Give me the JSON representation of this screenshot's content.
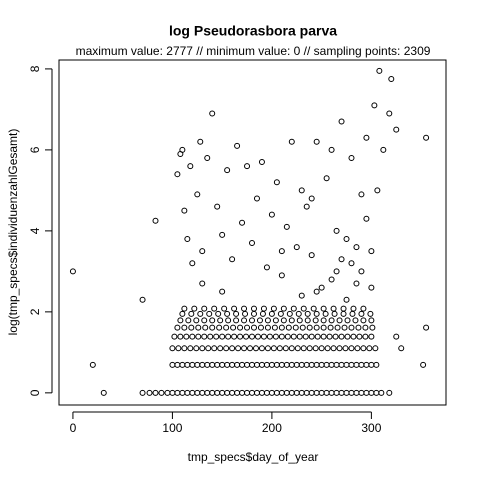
{
  "chart_data": {
    "type": "scatter",
    "title": "log Pseudorasbora parva",
    "subtitle": "maximum value: 2777  //  minimum value: 0  // sampling points: 2309",
    "x_label": "tmp_specs$day_of_year",
    "y_label": "log(tmp_specs$individuenzahlGesamt)",
    "xlim": [
      -14,
      375
    ],
    "ylim": [
      -0.3,
      8.22
    ],
    "xticks": [
      0,
      100,
      200,
      300
    ],
    "yticks": [
      0,
      2,
      4,
      6,
      8
    ],
    "color": "#000000",
    "x": [
      70,
      77,
      83,
      89,
      95,
      100,
      105,
      110,
      115,
      120,
      125,
      130,
      135,
      140,
      145,
      150,
      155,
      160,
      165,
      170,
      175,
      180,
      185,
      190,
      195,
      200,
      205,
      210,
      215,
      220,
      225,
      230,
      235,
      240,
      245,
      250,
      255,
      260,
      265,
      270,
      275,
      280,
      285,
      290,
      295,
      300,
      305,
      31,
      310,
      318,
      20,
      100,
      105,
      110,
      115,
      120,
      125,
      130,
      135,
      140,
      145,
      150,
      155,
      160,
      165,
      170,
      175,
      180,
      185,
      190,
      195,
      200,
      205,
      210,
      215,
      220,
      225,
      230,
      235,
      240,
      245,
      250,
      255,
      260,
      265,
      270,
      275,
      280,
      285,
      290,
      295,
      300,
      305,
      352,
      100,
      106,
      112,
      118,
      124,
      130,
      136,
      142,
      148,
      154,
      160,
      166,
      172,
      178,
      184,
      190,
      196,
      202,
      208,
      214,
      220,
      226,
      232,
      238,
      244,
      250,
      256,
      262,
      268,
      274,
      280,
      286,
      292,
      298,
      304,
      330,
      102,
      108,
      114,
      120,
      126,
      132,
      138,
      144,
      150,
      156,
      162,
      168,
      174,
      180,
      186,
      192,
      198,
      204,
      210,
      216,
      222,
      228,
      234,
      240,
      246,
      252,
      258,
      264,
      270,
      276,
      282,
      288,
      294,
      300,
      325,
      105,
      112,
      119,
      126,
      133,
      140,
      147,
      154,
      161,
      168,
      175,
      182,
      189,
      196,
      203,
      210,
      217,
      224,
      231,
      238,
      245,
      252,
      259,
      266,
      273,
      280,
      287,
      294,
      301,
      355,
      108,
      116,
      124,
      132,
      140,
      148,
      156,
      164,
      172,
      180,
      188,
      196,
      204,
      212,
      220,
      228,
      236,
      244,
      252,
      260,
      268,
      276,
      284,
      292,
      300,
      110,
      119,
      128,
      137,
      146,
      155,
      164,
      173,
      182,
      191,
      200,
      209,
      218,
      227,
      236,
      245,
      254,
      263,
      272,
      281,
      290,
      299,
      112,
      122,
      132,
      142,
      152,
      162,
      172,
      182,
      192,
      202,
      212,
      222,
      232,
      242,
      252,
      262,
      272,
      282,
      292,
      0,
      83,
      70,
      105,
      108,
      110,
      112,
      115,
      118,
      120,
      125,
      128,
      130,
      135,
      140,
      145,
      150,
      155,
      160,
      165,
      170,
      175,
      180,
      185,
      190,
      195,
      200,
      205,
      210,
      215,
      220,
      225,
      230,
      235,
      240,
      245,
      250,
      255,
      260,
      265,
      270,
      275,
      280,
      285,
      290,
      295,
      300,
      303,
      306,
      308,
      312,
      318,
      320,
      325,
      355,
      245,
      260,
      280,
      290,
      270,
      300,
      230,
      210,
      150,
      130,
      275,
      285,
      295,
      240,
      265
    ],
    "values": [
      0,
      0,
      0,
      0,
      0,
      0,
      0,
      0,
      0,
      0,
      0,
      0,
      0,
      0,
      0,
      0,
      0,
      0,
      0,
      0,
      0,
      0,
      0,
      0,
      0,
      0,
      0,
      0,
      0,
      0,
      0,
      0,
      0,
      0,
      0,
      0,
      0,
      0,
      0,
      0,
      0,
      0,
      0,
      0,
      0,
      0,
      0,
      0,
      0,
      0,
      0.69,
      0.69,
      0.69,
      0.69,
      0.69,
      0.69,
      0.69,
      0.69,
      0.69,
      0.69,
      0.69,
      0.69,
      0.69,
      0.69,
      0.69,
      0.69,
      0.69,
      0.69,
      0.69,
      0.69,
      0.69,
      0.69,
      0.69,
      0.69,
      0.69,
      0.69,
      0.69,
      0.69,
      0.69,
      0.69,
      0.69,
      0.69,
      0.69,
      0.69,
      0.69,
      0.69,
      0.69,
      0.69,
      0.69,
      0.69,
      0.69,
      0.69,
      0.69,
      0.69,
      1.1,
      1.1,
      1.1,
      1.1,
      1.1,
      1.1,
      1.1,
      1.1,
      1.1,
      1.1,
      1.1,
      1.1,
      1.1,
      1.1,
      1.1,
      1.1,
      1.1,
      1.1,
      1.1,
      1.1,
      1.1,
      1.1,
      1.1,
      1.1,
      1.1,
      1.1,
      1.1,
      1.1,
      1.1,
      1.1,
      1.1,
      1.1,
      1.1,
      1.1,
      1.1,
      1.1,
      1.39,
      1.39,
      1.39,
      1.39,
      1.39,
      1.39,
      1.39,
      1.39,
      1.39,
      1.39,
      1.39,
      1.39,
      1.39,
      1.39,
      1.39,
      1.39,
      1.39,
      1.39,
      1.39,
      1.39,
      1.39,
      1.39,
      1.39,
      1.39,
      1.39,
      1.39,
      1.39,
      1.39,
      1.39,
      1.39,
      1.39,
      1.39,
      1.39,
      1.39,
      1.39,
      1.61,
      1.61,
      1.61,
      1.61,
      1.61,
      1.61,
      1.61,
      1.61,
      1.61,
      1.61,
      1.61,
      1.61,
      1.61,
      1.61,
      1.61,
      1.61,
      1.61,
      1.61,
      1.61,
      1.61,
      1.61,
      1.61,
      1.61,
      1.61,
      1.61,
      1.61,
      1.61,
      1.61,
      1.61,
      1.61,
      1.79,
      1.79,
      1.79,
      1.79,
      1.79,
      1.79,
      1.79,
      1.79,
      1.79,
      1.79,
      1.79,
      1.79,
      1.79,
      1.79,
      1.79,
      1.79,
      1.79,
      1.79,
      1.79,
      1.79,
      1.79,
      1.79,
      1.79,
      1.79,
      1.79,
      1.95,
      1.95,
      1.95,
      1.95,
      1.95,
      1.95,
      1.95,
      1.95,
      1.95,
      1.95,
      1.95,
      1.95,
      1.95,
      1.95,
      1.95,
      1.95,
      1.95,
      1.95,
      1.95,
      1.95,
      1.95,
      1.95,
      2.08,
      2.08,
      2.08,
      2.08,
      2.08,
      2.08,
      2.08,
      2.08,
      2.08,
      2.08,
      2.08,
      2.08,
      2.08,
      2.08,
      2.08,
      2.08,
      2.08,
      2.08,
      2.08,
      3.0,
      4.25,
      2.3,
      5.4,
      5.9,
      6.0,
      4.5,
      3.8,
      5.6,
      3.2,
      4.9,
      6.2,
      3.5,
      5.8,
      6.9,
      4.6,
      3.9,
      5.5,
      3.3,
      6.1,
      4.2,
      5.6,
      3.7,
      4.8,
      5.7,
      3.1,
      4.4,
      5.2,
      2.9,
      4.1,
      6.2,
      3.6,
      5.0,
      4.6,
      3.4,
      6.2,
      2.6,
      5.3,
      6.0,
      4.0,
      6.7,
      3.8,
      5.8,
      2.7,
      4.9,
      6.3,
      3.5,
      7.1,
      5.0,
      7.95,
      6.0,
      6.9,
      7.75,
      6.5,
      6.3,
      2.5,
      2.8,
      3.2,
      3.0,
      3.3,
      2.6,
      2.4,
      3.5,
      2.5,
      2.7,
      2.3,
      3.6,
      4.3,
      4.8,
      3.0
    ]
  }
}
